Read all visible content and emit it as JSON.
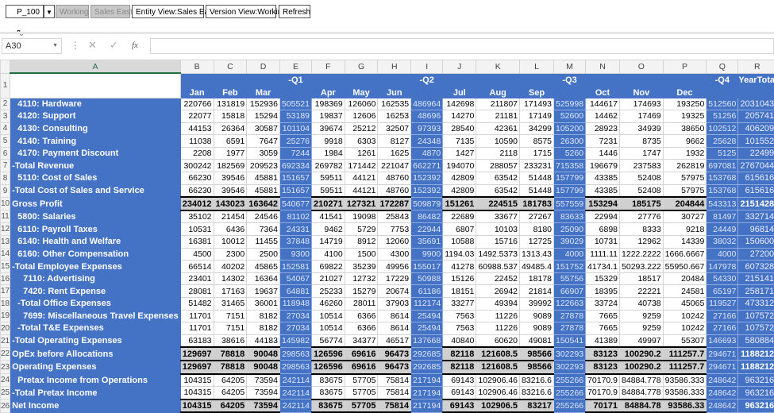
{
  "toolbar": {
    "product": "P_100",
    "version": "Working",
    "entity": "Sales East",
    "entity_view": "Entity View:Sales East",
    "version_view": "Version View:Working",
    "refresh": "Refresh"
  },
  "formula_bar": {
    "name_box": "A30",
    "cancel": "✕",
    "enter": "✓",
    "fx": "fx",
    "value": ""
  },
  "columns": [
    "A",
    "B",
    "C",
    "D",
    "E",
    "F",
    "G",
    "H",
    "I",
    "J",
    "K",
    "L",
    "M",
    "N",
    "O",
    "P",
    "Q",
    "R"
  ],
  "header_top": [
    "",
    "",
    "",
    "-Q1",
    "",
    "",
    "",
    "-Q2",
    "",
    "",
    "",
    "-Q3",
    "",
    "",
    "",
    "-Q4",
    "YearTotal"
  ],
  "header_bottom": [
    "Jan",
    "Feb",
    "Mar",
    "",
    "Apr",
    "May",
    "Jun",
    "",
    "Jul",
    "Aug",
    "Sep",
    "",
    "Oct",
    "Nov",
    "Dec",
    "",
    ""
  ],
  "colors": {
    "accent": "#4472c4",
    "total_row": "#d0d0d0"
  },
  "rows": [
    {
      "n": "2",
      "label": "4110: Hardware",
      "indent": 1,
      "bold": false,
      "values": [
        "220766",
        "131819",
        "152936",
        "505521",
        "198369",
        "126060",
        "162535",
        "486964",
        "142698",
        "211807",
        "171493",
        "525998",
        "144617",
        "174693",
        "193250",
        "512560",
        "2031043"
      ]
    },
    {
      "n": "3",
      "label": "4120: Support",
      "indent": 1,
      "bold": false,
      "values": [
        "22077",
        "15818",
        "15294",
        "53189",
        "19837",
        "12606",
        "16253",
        "48696",
        "14270",
        "21181",
        "17149",
        "52600",
        "14462",
        "17469",
        "19325",
        "51256",
        "205741"
      ]
    },
    {
      "n": "4",
      "label": "4130: Consulting",
      "indent": 1,
      "bold": false,
      "values": [
        "44153",
        "26364",
        "30587",
        "101104",
        "39674",
        "25212",
        "32507",
        "97393",
        "28540",
        "42361",
        "34299",
        "105200",
        "28923",
        "34939",
        "38650",
        "102512",
        "406209"
      ]
    },
    {
      "n": "5",
      "label": "4140: Training",
      "indent": 1,
      "bold": false,
      "values": [
        "11038",
        "6591",
        "7647",
        "25276",
        "9918",
        "6303",
        "8127",
        "24348",
        "7135",
        "10590",
        "8575",
        "26300",
        "7231",
        "8735",
        "9662",
        "25628",
        "101552"
      ]
    },
    {
      "n": "6",
      "label": "4170: Payment Discount",
      "indent": 1,
      "bold": false,
      "values": [
        "2208",
        "1977",
        "3059",
        "7244",
        "1984",
        "1261",
        "1625",
        "4870",
        "1427",
        "2118",
        "1715",
        "5260",
        "1446",
        "1747",
        "1932",
        "5125",
        "22499"
      ]
    },
    {
      "n": "7",
      "label": "-Total Revenue",
      "indent": 0,
      "bold": false,
      "values": [
        "300242",
        "182569",
        "209523",
        "692334",
        "269782",
        "171442",
        "221047",
        "662271",
        "194070",
        "288057",
        "233231",
        "715358",
        "196679",
        "237583",
        "262819",
        "697081",
        "2767044"
      ]
    },
    {
      "n": "8",
      "label": "5110: Cost of Sales",
      "indent": 1,
      "bold": false,
      "values": [
        "66230",
        "39546",
        "45881",
        "151657",
        "59511",
        "44121",
        "48760",
        "152392",
        "42809",
        "63542",
        "51448",
        "157799",
        "43385",
        "52408",
        "57975",
        "153768",
        "615616"
      ]
    },
    {
      "n": "9",
      "label": "-Total Cost of Sales and Service",
      "indent": 0,
      "bold": false,
      "values": [
        "66230",
        "39546",
        "45881",
        "151657",
        "59511",
        "44121",
        "48760",
        "152392",
        "42809",
        "63542",
        "51448",
        "157799",
        "43385",
        "52408",
        "57975",
        "153768",
        "615616"
      ]
    },
    {
      "n": "10",
      "label": "Gross Profit",
      "indent": 0,
      "bold": true,
      "values": [
        "234012",
        "143023",
        "163642",
        "540677",
        "210271",
        "127321",
        "172287",
        "509879",
        "151261",
        "224515",
        "181783",
        "557559",
        "153294",
        "185175",
        "204844",
        "543313",
        "2151428"
      ]
    },
    {
      "n": "11",
      "label": "5800: Salaries",
      "indent": 1,
      "bold": false,
      "values": [
        "35102",
        "21454",
        "24546",
        "81102",
        "41541",
        "19098",
        "25843",
        "86482",
        "22689",
        "33677",
        "27267",
        "83633",
        "22994",
        "27776",
        "30727",
        "81497",
        "332714"
      ]
    },
    {
      "n": "12",
      "label": "6110: Payroll Taxes",
      "indent": 1,
      "bold": false,
      "values": [
        "10531",
        "6436",
        "7364",
        "24331",
        "9462",
        "5729",
        "7753",
        "22944",
        "6807",
        "10103",
        "8180",
        "25090",
        "6898",
        "8333",
        "9218",
        "24449",
        "96814"
      ]
    },
    {
      "n": "13",
      "label": "6140: Health and Welfare",
      "indent": 1,
      "bold": false,
      "values": [
        "16381",
        "10012",
        "11455",
        "37848",
        "14719",
        "8912",
        "12060",
        "35691",
        "10588",
        "15716",
        "12725",
        "39029",
        "10731",
        "12962",
        "14339",
        "38032",
        "150600"
      ]
    },
    {
      "n": "14",
      "label": "6160: Other Compensation",
      "indent": 1,
      "bold": false,
      "values": [
        "4500",
        "2300",
        "2500",
        "9300",
        "4100",
        "1500",
        "4300",
        "9900",
        "1194.03",
        "1492.5373",
        "1313.43",
        "4000",
        "1111.11",
        "1222.2222",
        "1666.6667",
        "4000",
        "27200"
      ]
    },
    {
      "n": "15",
      "label": "-Total Employee Expenses",
      "indent": 0,
      "bold": false,
      "values": [
        "66514",
        "40202",
        "45865",
        "152581",
        "69822",
        "35239",
        "49956",
        "155017",
        "41278",
        "60988.537",
        "49485.4",
        "151752",
        "41734.1",
        "50293.222",
        "55950.667",
        "147978",
        "607328"
      ]
    },
    {
      "n": "16",
      "label": "7110: Advertising",
      "indent": 2,
      "bold": false,
      "values": [
        "23401",
        "14302",
        "16364",
        "54067",
        "21027",
        "12732",
        "17229",
        "50988",
        "15126",
        "22452",
        "18178",
        "55756",
        "15329",
        "18517",
        "20484",
        "54330",
        "215141"
      ]
    },
    {
      "n": "17",
      "label": "7420: Rent Expense",
      "indent": 2,
      "bold": false,
      "values": [
        "28081",
        "17163",
        "19637",
        "64881",
        "25233",
        "15279",
        "20674",
        "61186",
        "18151",
        "26942",
        "21814",
        "66907",
        "18395",
        "22221",
        "24581",
        "65197",
        "258171"
      ]
    },
    {
      "n": "18",
      "label": "-Total Office Expenses",
      "indent": 1,
      "bold": false,
      "values": [
        "51482",
        "31465",
        "36001",
        "118948",
        "46260",
        "28011",
        "37903",
        "112174",
        "33277",
        "49394",
        "39992",
        "122663",
        "33724",
        "40738",
        "45065",
        "119527",
        "473312"
      ]
    },
    {
      "n": "19",
      "label": "7699: Miscellaneous Travel Expenses",
      "indent": 2,
      "bold": false,
      "values": [
        "11701",
        "7151",
        "8182",
        "27034",
        "10514",
        "6366",
        "8614",
        "25494",
        "7563",
        "11226",
        "9089",
        "27878",
        "7665",
        "9259",
        "10242",
        "27166",
        "107572"
      ]
    },
    {
      "n": "20",
      "label": "-Total T&E Expenses",
      "indent": 1,
      "bold": false,
      "values": [
        "11701",
        "7151",
        "8182",
        "27034",
        "10514",
        "6366",
        "8614",
        "25494",
        "7563",
        "11226",
        "9089",
        "27878",
        "7665",
        "9259",
        "10242",
        "27166",
        "107572"
      ]
    },
    {
      "n": "21",
      "label": "-Total Operating Expenses",
      "indent": 0,
      "bold": false,
      "values": [
        "63183",
        "38616",
        "44183",
        "145982",
        "56774",
        "34377",
        "46517",
        "137668",
        "40840",
        "60620",
        "49081",
        "150541",
        "41389",
        "49997",
        "55307",
        "146693",
        "580884"
      ]
    },
    {
      "n": "22",
      "label": "OpEx before Allocations",
      "indent": 0,
      "bold": true,
      "values": [
        "129697",
        "78818",
        "90048",
        "298563",
        "126596",
        "69616",
        "96473",
        "292685",
        "82118",
        "121608.5",
        "98566",
        "302293",
        "83123",
        "100290.2",
        "111257.7",
        "294671",
        "1188212"
      ]
    },
    {
      "n": "23",
      "label": "Operating Expenses",
      "indent": 0,
      "bold": true,
      "values": [
        "129697",
        "78818",
        "90048",
        "298563",
        "126596",
        "69616",
        "96473",
        "292685",
        "82118",
        "121608.5",
        "98566",
        "302293",
        "83123",
        "100290.2",
        "111257.7",
        "294671",
        "1188212"
      ]
    },
    {
      "n": "24",
      "label": "Pretax Income from Operations",
      "indent": 1,
      "bold": false,
      "values": [
        "104315",
        "64205",
        "73594",
        "242114",
        "83675",
        "57705",
        "75814",
        "217194",
        "69143",
        "102906.46",
        "83216.6",
        "255266",
        "70170.9",
        "84884.778",
        "93586.333",
        "248642",
        "963216"
      ]
    },
    {
      "n": "25",
      "label": "-Total Pretax Income",
      "indent": 0,
      "bold": false,
      "values": [
        "104315",
        "64205",
        "73594",
        "242114",
        "83675",
        "57705",
        "75814",
        "217194",
        "69143",
        "102906.46",
        "83216.6",
        "255266",
        "70170.9",
        "84884.778",
        "93586.333",
        "248642",
        "963216"
      ]
    },
    {
      "n": "26",
      "label": "Net Income",
      "indent": 0,
      "bold": true,
      "values": [
        "104315",
        "64205",
        "73594",
        "242114",
        "83675",
        "57705",
        "75814",
        "217194",
        "69143",
        "102906.5",
        "83217",
        "255266",
        "70171",
        "84884.78",
        "93586.33",
        "248642",
        "963216"
      ]
    }
  ]
}
